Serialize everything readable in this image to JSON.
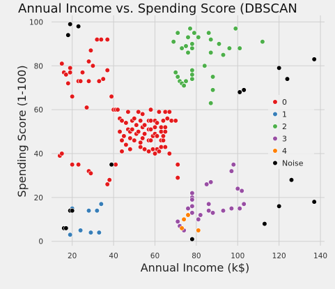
{
  "chart_data": {
    "type": "scatter",
    "title": "Annual Income vs. Spending Score (DBSCAN",
    "xlabel": "Annual Income (k$)",
    "ylabel": "Spending Score (1-100)",
    "xlim": [
      10,
      142
    ],
    "ylim": [
      -2,
      103
    ],
    "xticks": [
      20,
      40,
      60,
      80,
      100,
      120,
      140
    ],
    "yticks": [
      0,
      20,
      40,
      60,
      80,
      100
    ],
    "grid": true,
    "legend_position": "right",
    "series": [
      {
        "name": "0",
        "color": "#e41a1c",
        "points": [
          [
            15,
            81
          ],
          [
            16,
            77
          ],
          [
            17,
            76
          ],
          [
            18,
            72
          ],
          [
            19,
            79
          ],
          [
            19,
            77
          ],
          [
            20,
            66
          ],
          [
            23,
            73
          ],
          [
            24,
            73
          ],
          [
            25,
            77
          ],
          [
            27,
            61
          ],
          [
            28,
            73
          ],
          [
            28,
            82
          ],
          [
            29,
            87
          ],
          [
            30,
            80
          ],
          [
            32,
            92
          ],
          [
            33,
            73
          ],
          [
            34,
            92
          ],
          [
            35,
            74
          ],
          [
            37,
            78
          ],
          [
            37,
            92
          ],
          [
            14,
            39
          ],
          [
            15,
            40
          ],
          [
            20,
            35
          ],
          [
            23,
            35
          ],
          [
            28,
            32
          ],
          [
            29,
            31
          ],
          [
            37,
            26
          ],
          [
            38,
            28
          ],
          [
            41,
            35
          ],
          [
            39,
            66
          ],
          [
            40,
            60
          ],
          [
            41,
            60
          ],
          [
            42,
            60
          ],
          [
            43,
            56
          ],
          [
            44,
            55
          ],
          [
            43,
            50
          ],
          [
            44,
            46
          ],
          [
            44,
            41
          ],
          [
            45,
            48
          ],
          [
            46,
            54
          ],
          [
            46,
            44
          ],
          [
            47,
            51
          ],
          [
            47,
            59
          ],
          [
            48,
            50
          ],
          [
            48,
            47
          ],
          [
            48,
            42
          ],
          [
            49,
            55
          ],
          [
            49,
            51
          ],
          [
            50,
            46
          ],
          [
            50,
            56
          ],
          [
            51,
            49
          ],
          [
            51,
            53
          ],
          [
            52,
            50
          ],
          [
            52,
            59
          ],
          [
            53,
            55
          ],
          [
            53,
            43
          ],
          [
            53,
            45
          ],
          [
            54,
            52
          ],
          [
            54,
            58
          ],
          [
            54,
            47
          ],
          [
            55,
            49
          ],
          [
            55,
            53
          ],
          [
            55,
            42
          ],
          [
            57,
            46
          ],
          [
            57,
            51
          ],
          [
            57,
            55
          ],
          [
            57,
            41
          ],
          [
            58,
            46
          ],
          [
            58,
            51
          ],
          [
            58,
            55
          ],
          [
            58,
            60
          ],
          [
            59,
            42
          ],
          [
            59,
            48
          ],
          [
            60,
            49
          ],
          [
            60,
            52
          ],
          [
            60,
            55
          ],
          [
            60,
            40
          ],
          [
            61,
            42
          ],
          [
            61,
            48
          ],
          [
            61,
            54
          ],
          [
            62,
            41
          ],
          [
            62,
            59
          ],
          [
            63,
            50
          ],
          [
            63,
            43
          ],
          [
            63,
            46
          ],
          [
            63,
            52
          ],
          [
            64,
            46
          ],
          [
            64,
            48
          ],
          [
            64,
            55
          ],
          [
            65,
            43
          ],
          [
            65,
            50
          ],
          [
            65,
            52
          ],
          [
            65,
            59
          ],
          [
            66,
            56
          ],
          [
            67,
            59
          ],
          [
            67,
            40
          ],
          [
            68,
            55
          ],
          [
            70,
            55
          ],
          [
            71,
            35
          ],
          [
            71,
            29
          ]
        ]
      },
      {
        "name": "1",
        "color": "#377eb8",
        "points": [
          [
            19,
            3
          ],
          [
            20,
            15
          ],
          [
            24,
            5
          ],
          [
            28,
            14
          ],
          [
            29,
            4
          ],
          [
            32,
            14
          ],
          [
            33,
            4
          ],
          [
            34,
            17
          ]
        ]
      },
      {
        "name": "2",
        "color": "#4daf4a",
        "points": [
          [
            69,
            91
          ],
          [
            70,
            77
          ],
          [
            71,
            75
          ],
          [
            71,
            95
          ],
          [
            72,
            73
          ],
          [
            73,
            72
          ],
          [
            73,
            88
          ],
          [
            74,
            71
          ],
          [
            75,
            73
          ],
          [
            75,
            89
          ],
          [
            76,
            86
          ],
          [
            76,
            93
          ],
          [
            77,
            97
          ],
          [
            78,
            74
          ],
          [
            78,
            88
          ],
          [
            78,
            90
          ],
          [
            78,
            76
          ],
          [
            78,
            78
          ],
          [
            79,
            95
          ],
          [
            81,
            93
          ],
          [
            84,
            80
          ],
          [
            86,
            95
          ],
          [
            87,
            92
          ],
          [
            87,
            86
          ],
          [
            88,
            75
          ],
          [
            88,
            69
          ],
          [
            87,
            63
          ],
          [
            91,
            90
          ],
          [
            93,
            85
          ],
          [
            96,
            88
          ],
          [
            99,
            97
          ],
          [
            101,
            88
          ],
          [
            112,
            91
          ]
        ]
      },
      {
        "name": "3",
        "color": "#984ea3",
        "points": [
          [
            71,
            9
          ],
          [
            72,
            7
          ],
          [
            74,
            5
          ],
          [
            76,
            15
          ],
          [
            78,
            20
          ],
          [
            78,
            16
          ],
          [
            78,
            13
          ],
          [
            78,
            19
          ],
          [
            78,
            22
          ],
          [
            81,
            10
          ],
          [
            82,
            12
          ],
          [
            85,
            26
          ],
          [
            86,
            14
          ],
          [
            86,
            17
          ],
          [
            87,
            27
          ],
          [
            88,
            13
          ],
          [
            93,
            14
          ],
          [
            97,
            15
          ],
          [
            97,
            32
          ],
          [
            98,
            35
          ],
          [
            100,
            24
          ],
          [
            101,
            15
          ],
          [
            102,
            23
          ],
          [
            103,
            17
          ]
        ]
      },
      {
        "name": "4",
        "color": "#ff7f00",
        "points": [
          [
            73,
            6
          ],
          [
            74,
            10
          ],
          [
            76,
            12
          ],
          [
            81,
            5
          ]
        ]
      },
      {
        "name": "Noise",
        "color": "#000000",
        "points": [
          [
            16,
            6
          ],
          [
            17,
            6
          ],
          [
            18,
            94
          ],
          [
            19,
            99
          ],
          [
            19,
            14
          ],
          [
            20,
            14
          ],
          [
            23,
            98
          ],
          [
            39,
            35
          ],
          [
            78,
            1
          ],
          [
            101,
            68
          ],
          [
            103,
            69
          ],
          [
            113,
            8
          ],
          [
            120,
            79
          ],
          [
            120,
            16
          ],
          [
            124,
            74
          ],
          [
            126,
            28
          ],
          [
            137,
            83
          ],
          [
            137,
            18
          ]
        ]
      }
    ]
  }
}
